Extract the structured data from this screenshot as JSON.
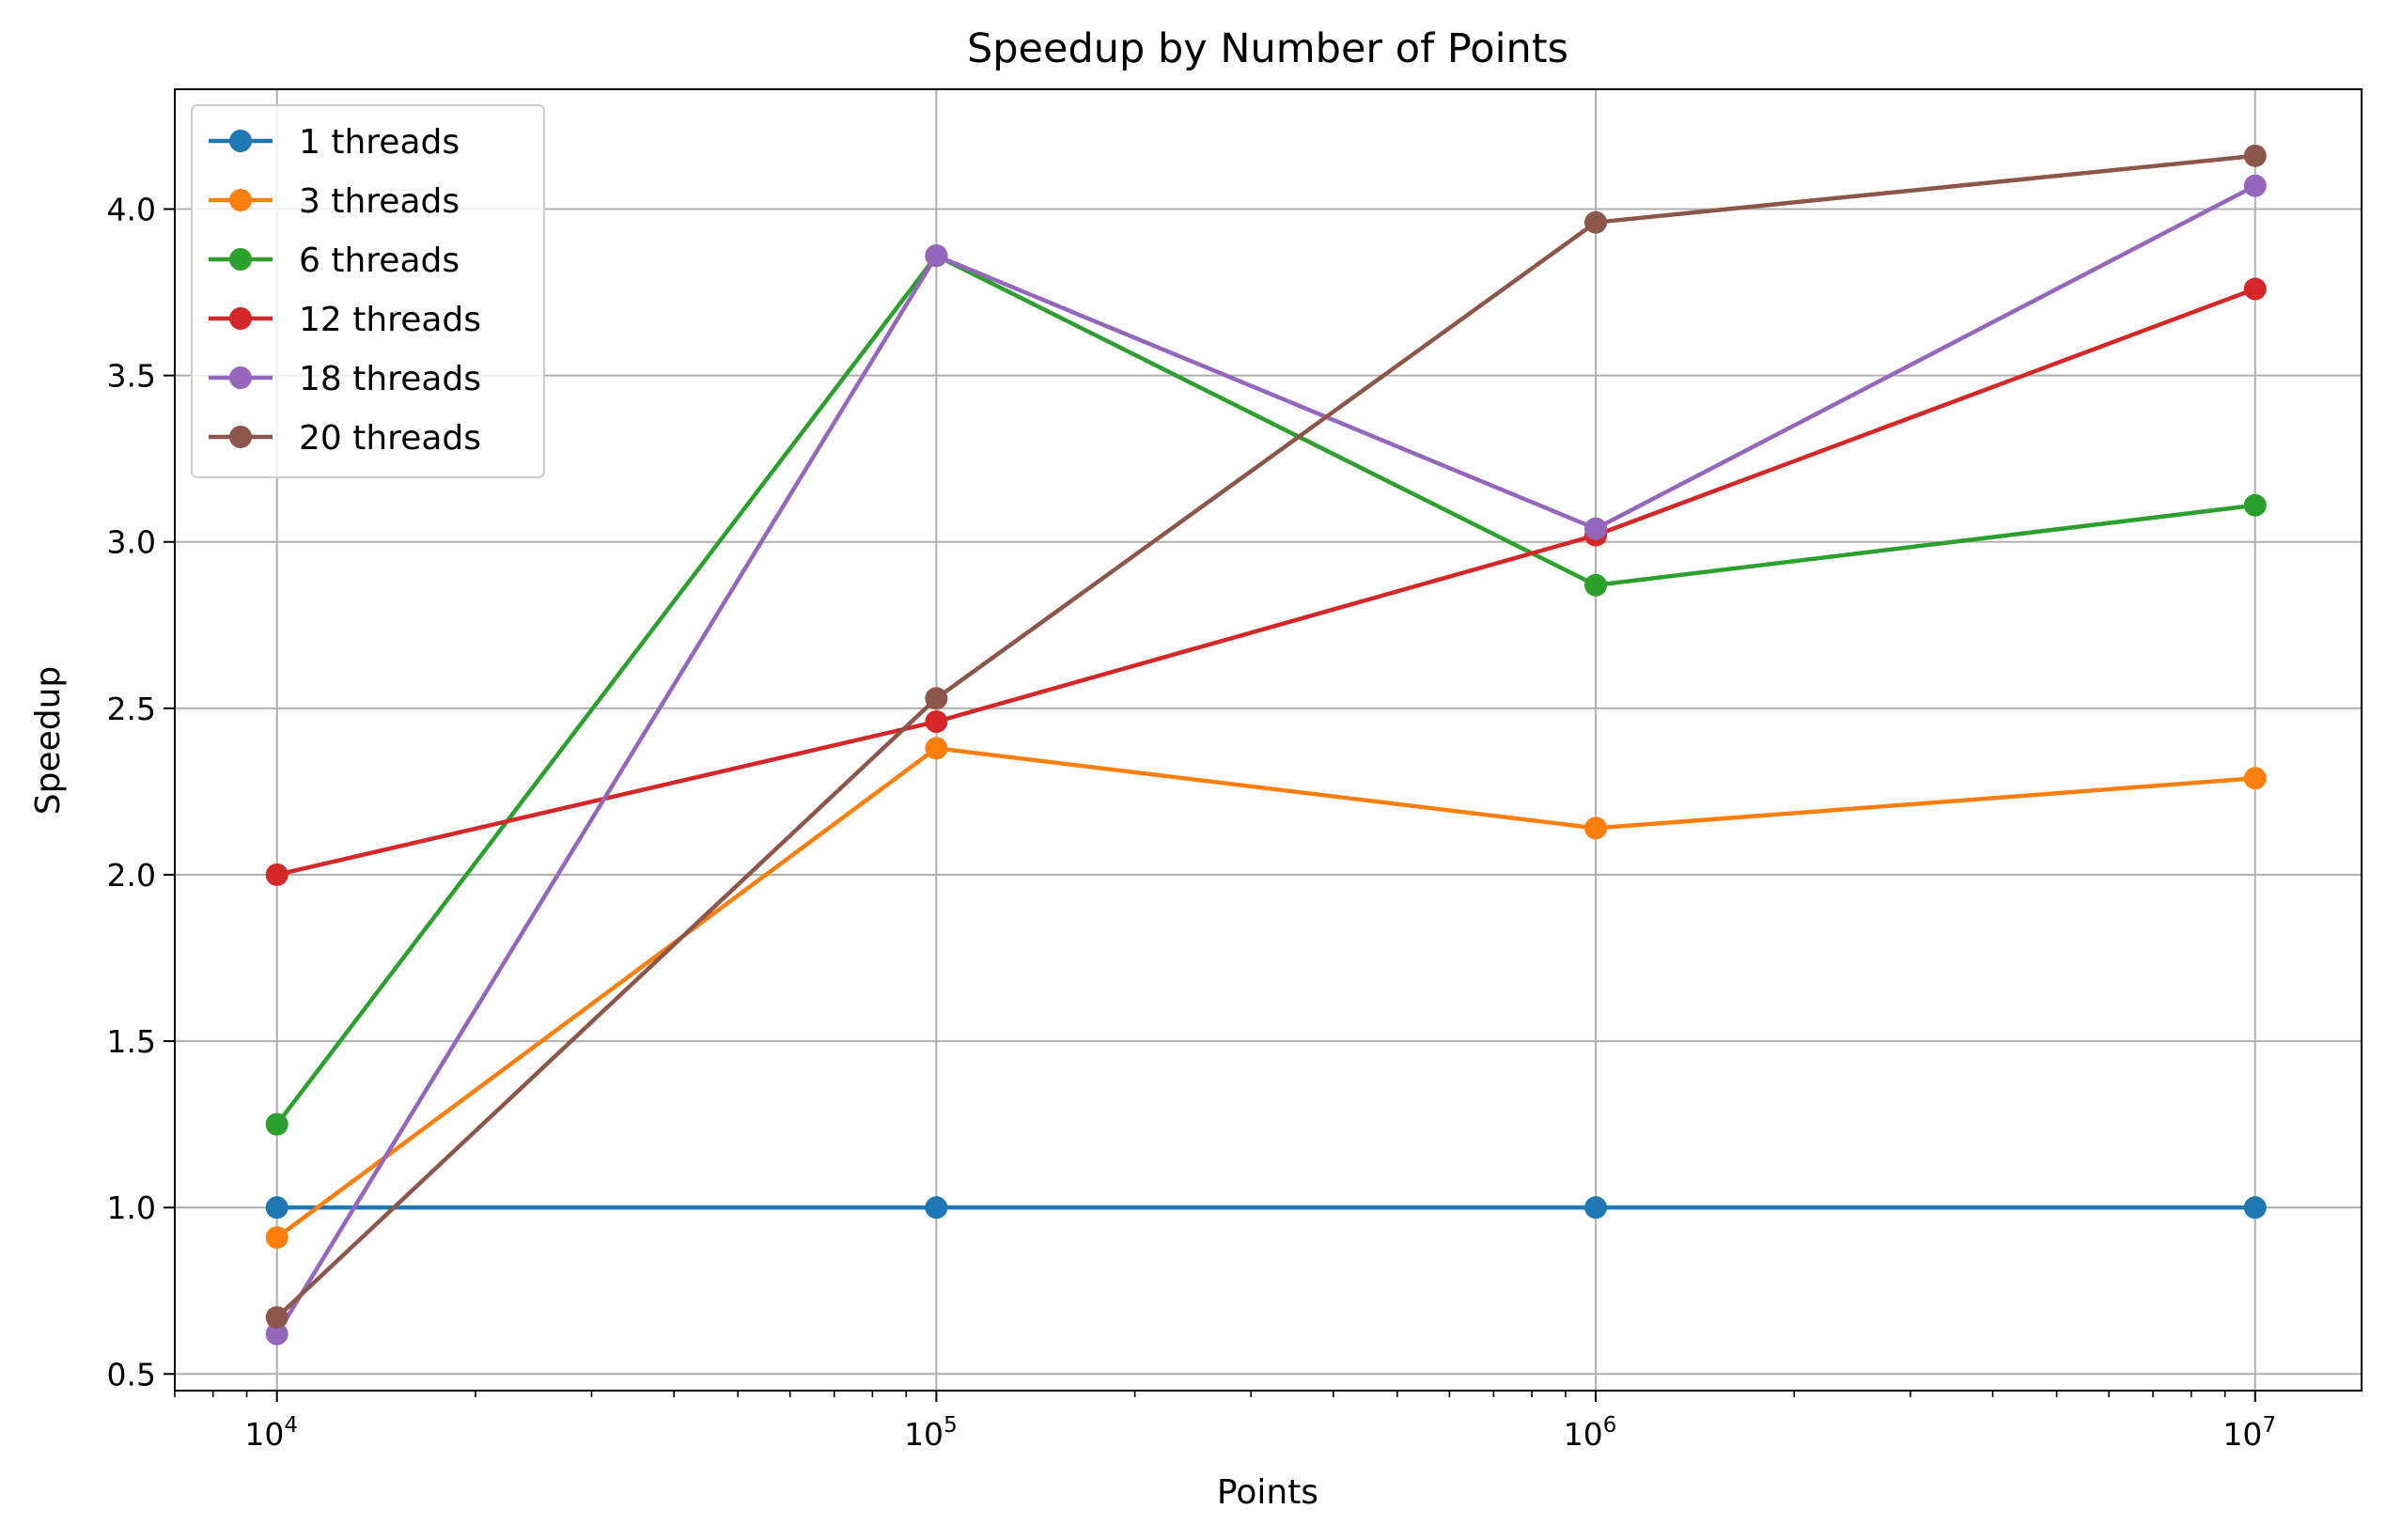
{
  "chart_data": {
    "type": "line",
    "title": "Speedup by Number of Points",
    "xlabel": "Points",
    "ylabel": "Speedup",
    "xscale": "log",
    "x": [
      10000,
      100000,
      1000000,
      10000000
    ],
    "x_tick_labels": [
      {
        "base": "10",
        "exp": "4"
      },
      {
        "base": "10",
        "exp": "5"
      },
      {
        "base": "10",
        "exp": "6"
      },
      {
        "base": "10",
        "exp": "7"
      }
    ],
    "y_ticks": [
      0.5,
      1.0,
      1.5,
      2.0,
      2.5,
      3.0,
      3.5,
      4.0
    ],
    "y_tick_labels": [
      "0.5",
      "1.0",
      "1.5",
      "2.0",
      "2.5",
      "3.0",
      "3.5",
      "4.0"
    ],
    "ylim": [
      0.45,
      4.36
    ],
    "xlim": [
      7000,
      14500000
    ],
    "grid": true,
    "legend_position": "upper-left",
    "series": [
      {
        "name": "1 threads",
        "color": "#1f77b4",
        "values": [
          1.0,
          1.0,
          1.0,
          1.0
        ]
      },
      {
        "name": "3 threads",
        "color": "#ff7f0e",
        "values": [
          0.91,
          2.38,
          2.14,
          2.29
        ]
      },
      {
        "name": "6 threads",
        "color": "#2ca02c",
        "values": [
          1.25,
          3.86,
          2.87,
          3.11
        ]
      },
      {
        "name": "12 threads",
        "color": "#d62728",
        "values": [
          2.0,
          2.46,
          3.02,
          3.76
        ]
      },
      {
        "name": "18 threads",
        "color": "#9467bd",
        "values": [
          0.62,
          3.86,
          3.04,
          4.07
        ]
      },
      {
        "name": "20 threads",
        "color": "#8c564b",
        "values": [
          0.67,
          2.53,
          3.96,
          4.16
        ]
      }
    ]
  }
}
